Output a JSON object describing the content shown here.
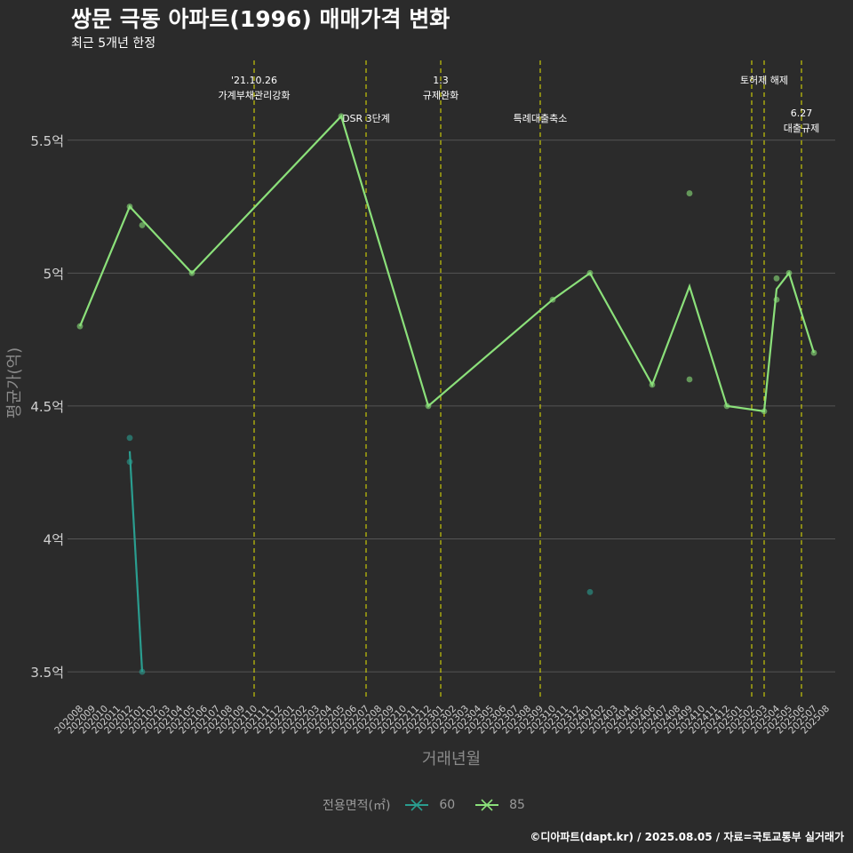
{
  "header": {
    "title": "쌍문 극동 아파트(1996) 매매가격 변화",
    "subtitle": "최근 5개년 한정"
  },
  "footer": "©디아파트(dapt.kr) / 2025.08.05 / 자료=국토교통부 실거래가",
  "legend": {
    "title": "전용면적(㎡)",
    "items": [
      {
        "label": "60",
        "color": "#2a9d8f"
      },
      {
        "label": "85",
        "color": "#8be07a"
      }
    ]
  },
  "colors": {
    "background": "#2b2b2b",
    "grid": "#555555",
    "event_line": "#e6e600",
    "axis_title": "#8a8a8a",
    "tick_label": "#d0d0d0"
  },
  "chart_data": {
    "type": "line",
    "xlabel": "거래년월",
    "ylabel": "평균가(억)",
    "x_categories": [
      "202008",
      "202009",
      "202010",
      "202011",
      "202012",
      "202101",
      "202102",
      "202103",
      "202104",
      "202105",
      "202106",
      "202107",
      "202108",
      "202109",
      "202110",
      "202111",
      "202112",
      "202201",
      "202202",
      "202203",
      "202204",
      "202205",
      "202206",
      "202207",
      "202208",
      "202209",
      "202210",
      "202211",
      "202212",
      "202301",
      "202302",
      "202303",
      "202304",
      "202305",
      "202306",
      "202307",
      "202308",
      "202309",
      "202310",
      "202311",
      "202312",
      "202401",
      "202402",
      "202403",
      "202404",
      "202405",
      "202406",
      "202407",
      "202408",
      "202409",
      "202410",
      "202411",
      "202412",
      "202501",
      "202502",
      "202503",
      "202504",
      "202505",
      "202506",
      "202507",
      "202508"
    ],
    "y_ticks": [
      {
        "value": 3.5,
        "label": "3.5억"
      },
      {
        "value": 4,
        "label": "4억"
      },
      {
        "value": 4.5,
        "label": "4.5억"
      },
      {
        "value": 5,
        "label": "5억"
      },
      {
        "value": 5.5,
        "label": "5.5억"
      }
    ],
    "ylim": [
      3.4,
      5.8
    ],
    "grid": true,
    "legend_position": "bottom",
    "series": [
      {
        "name": "60",
        "color": "#2a9d8f",
        "line": [
          [
            "202012",
            4.33
          ],
          [
            "202101",
            3.5
          ]
        ],
        "points": [
          [
            "202012",
            4.38
          ],
          [
            "202012",
            4.29
          ],
          [
            "202101",
            3.5
          ],
          [
            "202401",
            3.8
          ]
        ]
      },
      {
        "name": "85",
        "color": "#8be07a",
        "line": [
          [
            "202008",
            4.8
          ],
          [
            "202012",
            5.25
          ],
          [
            "202101",
            5.2
          ],
          [
            "202105",
            5.0
          ],
          [
            "202205",
            5.59
          ],
          [
            "202212",
            4.5
          ],
          [
            "202310",
            4.9
          ],
          [
            "202401",
            5.0
          ],
          [
            "202406",
            4.58
          ],
          [
            "202409",
            4.95
          ],
          [
            "202412",
            4.5
          ],
          [
            "202503",
            4.48
          ],
          [
            "202504",
            4.94
          ],
          [
            "202505",
            5.0
          ],
          [
            "202507",
            4.7
          ]
        ],
        "points": [
          [
            "202008",
            4.8
          ],
          [
            "202012",
            5.25
          ],
          [
            "202101",
            5.18
          ],
          [
            "202105",
            5.0
          ],
          [
            "202205",
            5.59
          ],
          [
            "202212",
            4.5
          ],
          [
            "202310",
            4.9
          ],
          [
            "202401",
            5.0
          ],
          [
            "202406",
            4.58
          ],
          [
            "202409",
            5.3
          ],
          [
            "202409",
            4.6
          ],
          [
            "202412",
            4.5
          ],
          [
            "202503",
            4.48
          ],
          [
            "202504",
            4.98
          ],
          [
            "202504",
            4.9
          ],
          [
            "202505",
            5.0
          ],
          [
            "202507",
            4.7
          ]
        ]
      }
    ],
    "events": [
      {
        "x": "202110",
        "lines": [
          "'21.10.26",
          "가계부채관리강화"
        ],
        "row": 0
      },
      {
        "x": "202207",
        "lines": [
          "DSR 3단계"
        ],
        "row": 1
      },
      {
        "x": "202301",
        "lines": [
          "1.3",
          "규제완화"
        ],
        "row": 0
      },
      {
        "x": "202309",
        "lines": [
          "특례대출축소"
        ],
        "row": 1
      },
      {
        "x": "202502",
        "lines": [],
        "row": 0
      },
      {
        "x": "202503",
        "lines": [
          "토허제 해제"
        ],
        "row": 0
      },
      {
        "x": "202506",
        "lines": [
          "6.27",
          "대출규제"
        ],
        "row": 2
      }
    ]
  }
}
